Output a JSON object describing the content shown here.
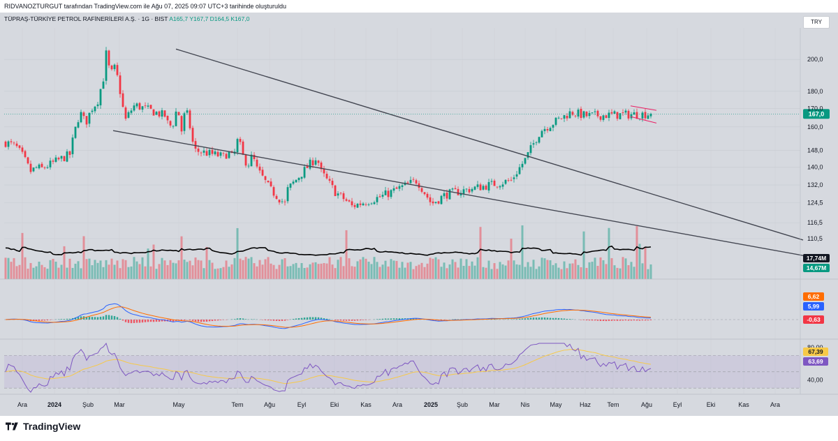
{
  "header": {
    "text": "RIDVANOZTURGUT tarafından TradingView.com ile Ağu 07, 2025 09:07 UTC+3 tarihinde oluşturuldu"
  },
  "symbol": {
    "name": "TÜPRAŞ-TÜRKİYE PETROL RAFİNERİLERİ A.Ş. · 1G · BIST",
    "ohlc": "A165,7  Y167,7  D164,5  K167,0"
  },
  "currency": "TRY",
  "footer": {
    "brand": "TradingView"
  },
  "colors": {
    "up": "#089981",
    "down": "#f23645",
    "price_tag": "#089981",
    "macd_line": "#2962ff",
    "signal_line": "#ff6d00",
    "rsi_line": "#7e57c2",
    "rsi_ma": "#f7c948",
    "trendline": "#434651",
    "flag": "#e91e63"
  },
  "chart_data": [
    {
      "type": "candlestick",
      "title": "",
      "x_ticks": [
        "Ara",
        "2024",
        "Şub",
        "Mar",
        "May",
        "Tem",
        "Ağu",
        "Eyl",
        "Eki",
        "Kas",
        "Ara",
        "2025",
        "Şub",
        "Mar",
        "Nis",
        "May",
        "Haz",
        "Tem",
        "Ağu",
        "Eyl",
        "Eki",
        "Kas",
        "Ara"
      ],
      "y_ticks": [
        "200,0",
        "180,0",
        "170,0",
        "160,0",
        "148,0",
        "140,0",
        "132,0",
        "124,5",
        "116,5",
        "110,5"
      ],
      "y_scale": "log",
      "ylim": [
        106,
        212
      ],
      "last_price": "167,0",
      "close_path": [
        {
          "t": "Ara",
          "v": 152
        },
        {
          "t": "Ara",
          "v": 150
        },
        {
          "t": "Ara",
          "v": 145
        },
        {
          "t": "2024",
          "v": 138
        },
        {
          "t": "2024",
          "v": 140
        },
        {
          "t": "Şub",
          "v": 139
        },
        {
          "t": "Şub",
          "v": 146
        },
        {
          "t": "Şub",
          "v": 156
        },
        {
          "t": "Mar",
          "v": 168
        },
        {
          "t": "Mar",
          "v": 162
        },
        {
          "t": "Mar",
          "v": 170
        },
        {
          "t": "Mar",
          "v": 174
        },
        {
          "t": "May",
          "v": 188
        },
        {
          "t": "May",
          "v": 206
        },
        {
          "t": "May",
          "v": 190
        },
        {
          "t": "May",
          "v": 195
        },
        {
          "t": "May",
          "v": 180
        },
        {
          "t": "Tem",
          "v": 163
        },
        {
          "t": "Tem",
          "v": 168
        },
        {
          "t": "Tem",
          "v": 172
        },
        {
          "t": "Tem",
          "v": 166
        },
        {
          "t": "Ağu",
          "v": 160
        },
        {
          "t": "Ağu",
          "v": 162
        },
        {
          "t": "Eyl",
          "v": 171
        },
        {
          "t": "Eyl",
          "v": 158
        },
        {
          "t": "Eki",
          "v": 170
        },
        {
          "t": "Eki",
          "v": 160
        },
        {
          "t": "Eki",
          "v": 148
        },
        {
          "t": "Kas",
          "v": 145
        },
        {
          "t": "Kas",
          "v": 147
        },
        {
          "t": "Ara",
          "v": 144
        },
        {
          "t": "Ara",
          "v": 154
        },
        {
          "t": "2025",
          "v": 145
        },
        {
          "t": "2025",
          "v": 141
        },
        {
          "t": "2025",
          "v": 146
        },
        {
          "t": "Şub",
          "v": 140
        },
        {
          "t": "Şub",
          "v": 130
        },
        {
          "t": "Şub",
          "v": 124
        },
        {
          "t": "Mar",
          "v": 130
        },
        {
          "t": "Mar",
          "v": 145
        },
        {
          "t": "Mar",
          "v": 138
        },
        {
          "t": "Nis",
          "v": 129
        },
        {
          "t": "Nis",
          "v": 124
        },
        {
          "t": "Nis",
          "v": 123
        },
        {
          "t": "May",
          "v": 127
        },
        {
          "t": "May",
          "v": 134
        },
        {
          "t": "May",
          "v": 124
        },
        {
          "t": "Haz",
          "v": 128
        },
        {
          "t": "Haz",
          "v": 134
        },
        {
          "t": "Haz",
          "v": 144
        },
        {
          "t": "Tem",
          "v": 158
        },
        {
          "t": "Tem",
          "v": 168
        },
        {
          "t": "Tem",
          "v": 166
        },
        {
          "t": "Ağu",
          "v": 167
        }
      ],
      "annotations": [
        "falling wedge (two descending trendlines)",
        "bull flag near top"
      ]
    },
    {
      "type": "bar",
      "title": "",
      "labels": [
        "17,74M",
        "14,67M"
      ]
    },
    {
      "type": "line",
      "title": "",
      "series": [
        {
          "name": "",
          "last": "6,62"
        },
        {
          "name": "",
          "last": "5,99"
        }
      ],
      "histogram_last": "-0,63"
    },
    {
      "type": "line",
      "title": "",
      "y_ticks": [
        "80,00",
        "40,00"
      ],
      "series": [
        {
          "name": "",
          "last": "63,69"
        },
        {
          "name": "",
          "last": "67,39"
        }
      ],
      "levels": [
        70,
        50,
        30
      ]
    }
  ]
}
